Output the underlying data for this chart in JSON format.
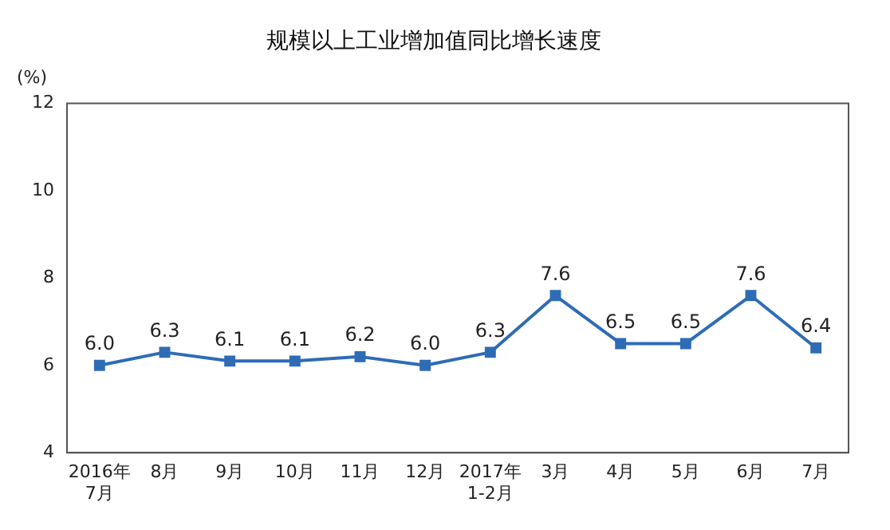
{
  "chart_data": {
    "type": "line",
    "title": "规模以上工业增加值同比增长速度",
    "ylabel": "(%)",
    "categories": [
      "2016年\n7月",
      "8月",
      "9月",
      "10月",
      "11月",
      "12月",
      "2017年\n1-2月",
      "3月",
      "4月",
      "5月",
      "6月",
      "7月"
    ],
    "series": [
      {
        "color": "#2e6cb5",
        "values": [
          6.0,
          6.3,
          6.1,
          6.1,
          6.2,
          6.0,
          6.3,
          7.6,
          6.5,
          6.5,
          7.6,
          6.4
        ],
        "value_labels": [
          "6.0",
          "6.3",
          "6.1",
          "6.1",
          "6.2",
          "6.0",
          "6.3",
          "7.6",
          "6.5",
          "6.5",
          "7.6",
          "6.4"
        ]
      }
    ],
    "ylim": [
      4,
      12
    ],
    "yticks": [
      4,
      6,
      8,
      10,
      12
    ],
    "grid": false,
    "legend": false,
    "marker": "square",
    "line_style": "solid"
  }
}
